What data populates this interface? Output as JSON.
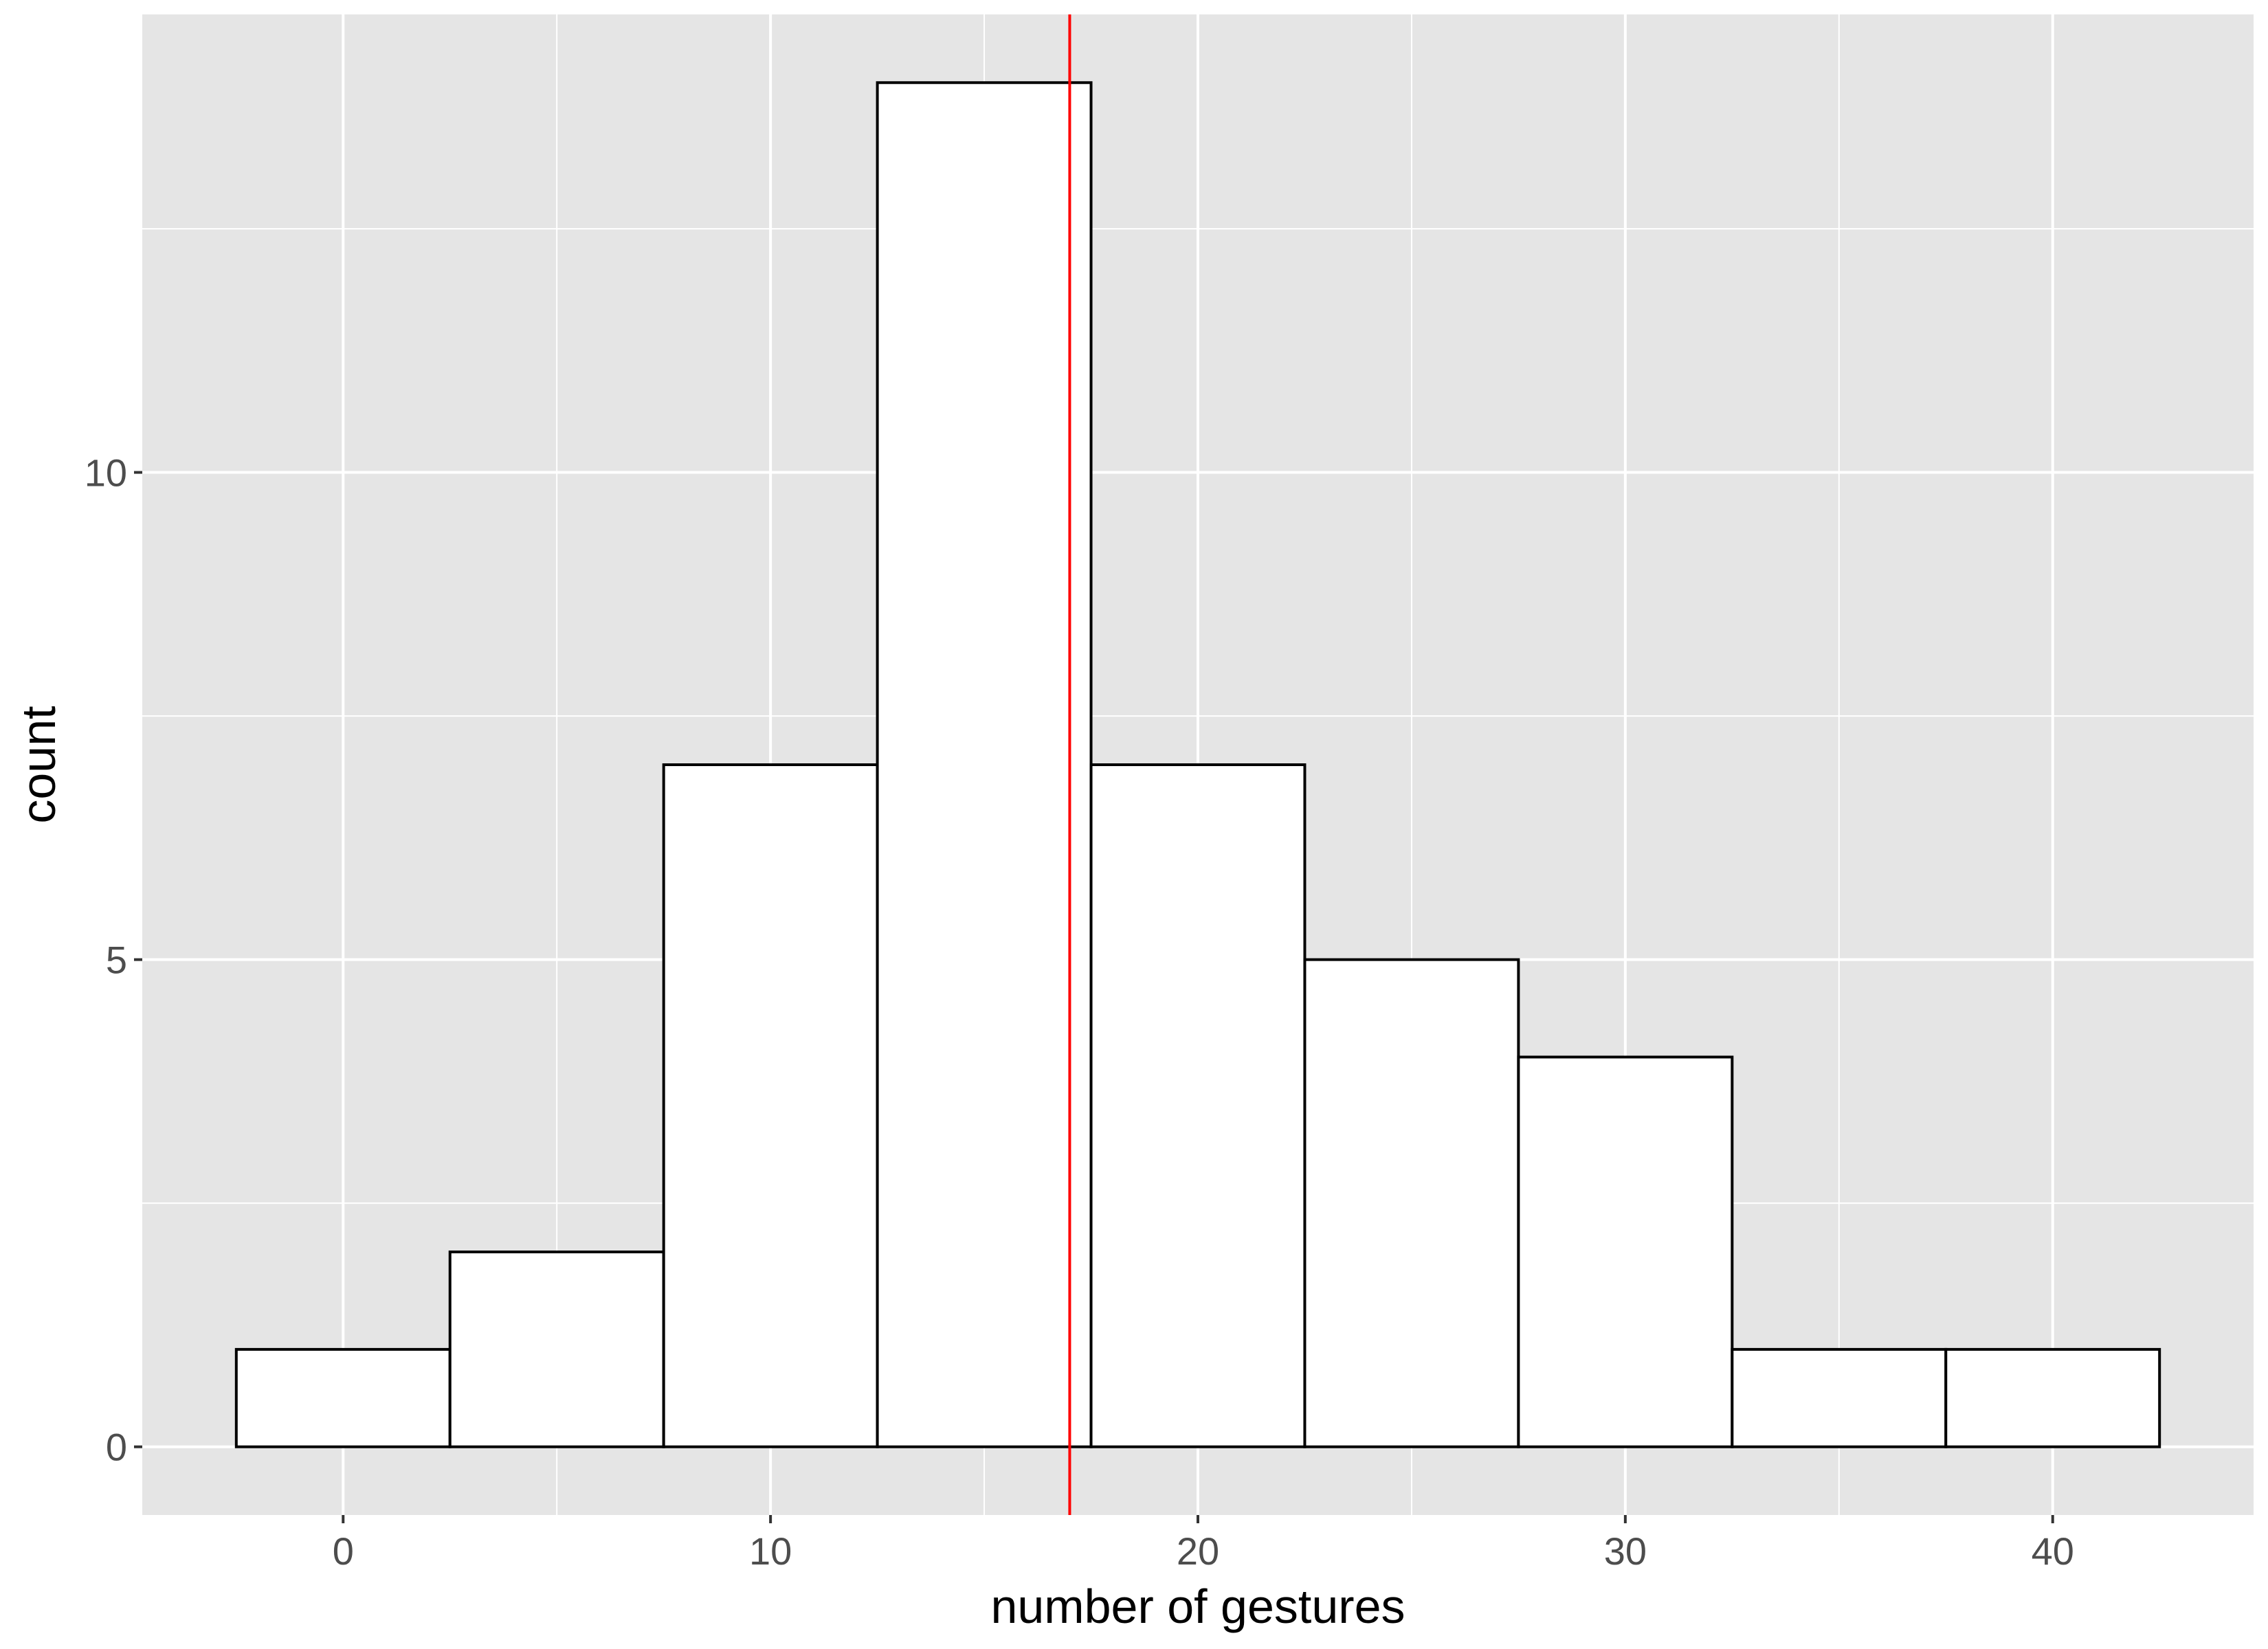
{
  "chart_data": {
    "type": "bar",
    "subtype": "histogram",
    "title": "",
    "xlabel": "number of gestures",
    "ylabel": "count",
    "bin_width": 5,
    "bins": [
      {
        "x_min": -2.5,
        "x_max": 2.5,
        "count": 1
      },
      {
        "x_min": 2.5,
        "x_max": 7.5,
        "count": 2
      },
      {
        "x_min": 7.5,
        "x_max": 12.5,
        "count": 7
      },
      {
        "x_min": 12.5,
        "x_max": 17.5,
        "count": 14
      },
      {
        "x_min": 17.5,
        "x_max": 22.5,
        "count": 7
      },
      {
        "x_min": 22.5,
        "x_max": 27.5,
        "count": 5
      },
      {
        "x_min": 27.5,
        "x_max": 32.5,
        "count": 4
      },
      {
        "x_min": 32.5,
        "x_max": 37.5,
        "count": 1
      },
      {
        "x_min": 37.5,
        "x_max": 42.5,
        "count": 1
      }
    ],
    "xlim": [
      -4.7,
      44.7
    ],
    "ylim": [
      -0.7,
      14.7
    ],
    "x_ticks": [
      0,
      10,
      20,
      30,
      40
    ],
    "x_tick_labels": [
      "0",
      "10",
      "20",
      "30",
      "40"
    ],
    "y_ticks": [
      0,
      5,
      10
    ],
    "y_tick_labels": [
      "0",
      "5",
      "10"
    ],
    "reference_line": {
      "orientation": "vertical",
      "x": 17,
      "color": "#ff0000"
    },
    "grid": true,
    "legend": "none",
    "colors": {
      "panel_background": "#e5e5e5",
      "grid": "#ffffff",
      "bar_fill": "#ffffff",
      "bar_outline": "#000000",
      "tick_label": "#4d4d4d",
      "axis_title": "#000000"
    }
  }
}
